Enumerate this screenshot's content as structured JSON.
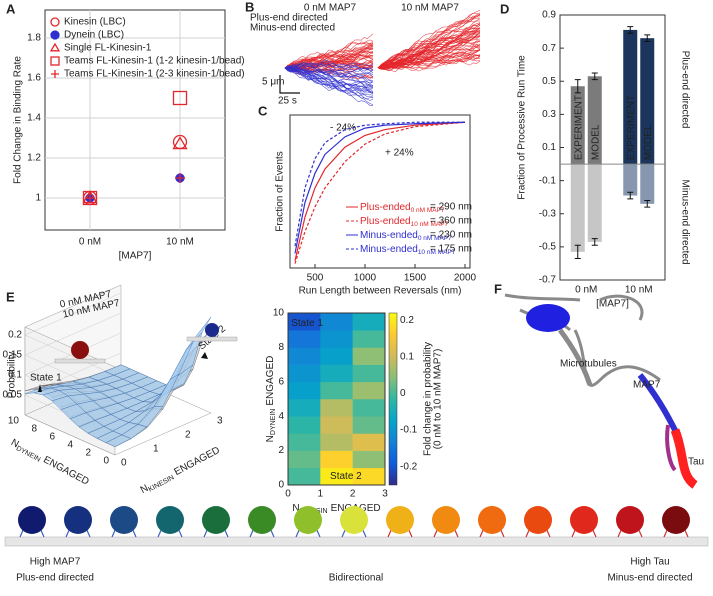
{
  "panel_labels": [
    "A",
    "B",
    "C",
    "D",
    "E",
    "F"
  ],
  "chart_data": [
    {
      "type": "scatter",
      "x_label": "[MAP7]",
      "y_label": "Fold Change in Binding Rate",
      "categories": [
        "0 nM",
        "10 nM"
      ],
      "ylim": [
        0.84,
        1.94
      ],
      "yticks": [
        1,
        1.2,
        1.4,
        1.6,
        1.8
      ],
      "grid": true,
      "series": [
        {
          "name": "Kinesin (LBC)",
          "color": "#e3262b",
          "marker": "circle",
          "filled": false,
          "values": [
            1.0,
            1.28
          ]
        },
        {
          "name": "Dynein (LBC)",
          "color": "#2f2fd0",
          "marker": "circle",
          "filled": true,
          "values": [
            1.0,
            1.1
          ]
        },
        {
          "name": "Single FL-Kinesin-1",
          "color": "#e3262b",
          "marker": "triangle",
          "filled": false,
          "values": [
            1.0,
            1.27
          ]
        },
        {
          "name": "Teams FL-Kinesin-1 (1-2 kinesin-1/bead)",
          "color": "#e3262b",
          "marker": "square",
          "filled": false,
          "values": [
            1.0,
            1.5
          ]
        },
        {
          "name": "Teams FL-Kinesin-1 (2-3 kinesin-1/bead)",
          "color": "#e3262b",
          "marker": "plus",
          "filled": false,
          "values": [
            1.0,
            1.1
          ]
        }
      ]
    },
    {
      "type": "line",
      "x_label": "Run Length between Reversals (nm)",
      "y_label": "Fraction of Events",
      "x": [
        300,
        400,
        500,
        600,
        800,
        1000,
        1200,
        1500,
        2000
      ],
      "xlim": [
        250,
        2050
      ],
      "xticks": [
        500,
        1000,
        1500,
        2000
      ],
      "ylim": [
        0,
        1.05
      ],
      "series": [
        {
          "name": "Plus-ended",
          "condition": "0 nM MAP7",
          "mean_label": "= 290 nm",
          "color": "#e3262b",
          "dashed": false,
          "values": [
            0.05,
            0.35,
            0.55,
            0.68,
            0.83,
            0.91,
            0.95,
            0.98,
            1.0
          ]
        },
        {
          "name": "Plus-ended",
          "condition": "10 nM MAP7",
          "mean_label": "= 360 nm",
          "color": "#e3262b",
          "dashed": true,
          "values": [
            0.03,
            0.25,
            0.42,
            0.55,
            0.73,
            0.85,
            0.92,
            0.97,
            1.0
          ]
        },
        {
          "name": "Minus-ended",
          "condition": "0 nM MAP7",
          "mean_label": "= 230 nm",
          "color": "#2f2fd0",
          "dashed": false,
          "values": [
            0.1,
            0.45,
            0.65,
            0.78,
            0.9,
            0.96,
            0.98,
            0.99,
            1.0
          ]
        },
        {
          "name": "Minus-ended",
          "condition": "10 nM MAP7",
          "mean_label": "= 175 nm",
          "color": "#2f2fd0",
          "dashed": true,
          "values": [
            0.15,
            0.55,
            0.75,
            0.86,
            0.95,
            0.98,
            0.99,
            1.0,
            1.0
          ]
        }
      ],
      "annotations": [
        {
          "text": "- 24%",
          "color": "#2f2fd0"
        },
        {
          "text": "+ 24%",
          "color": "#e3262b"
        }
      ]
    },
    {
      "type": "bar",
      "x_label": "[MAP7]",
      "y_label": "Fraction of Processive Run Time",
      "categories": [
        "0 nM",
        "10 nM"
      ],
      "ylim": [
        -0.7,
        0.9
      ],
      "yticks": [
        -0.7,
        -0.5,
        -0.3,
        -0.1,
        0.1,
        0.3,
        0.5,
        0.7,
        0.9
      ],
      "colors_plus": [
        "#7b7b7b",
        "#1b355c"
      ],
      "colors_minus": [
        "#c6c6c6",
        "#8797b0"
      ],
      "side_labels": [
        "Plus-end directed",
        "Minus-end directed"
      ],
      "series": [
        {
          "name": "EXPERIMENT",
          "plus": [
            0.47,
            0.81
          ],
          "plus_error": [
            0.04,
            0.02
          ],
          "minus": [
            -0.53,
            -0.19
          ],
          "minus_error": [
            0.04,
            0.02
          ]
        },
        {
          "name": "MODEL",
          "plus": [
            0.53,
            0.76
          ],
          "plus_error": [
            0.02,
            0.02
          ],
          "minus": [
            -0.47,
            -0.24
          ],
          "minus_error": [
            0.02,
            0.02
          ]
        }
      ]
    },
    {
      "type": "heatmap",
      "x_label": {
        "main": "N",
        "sub": "KINESIN",
        "rest": "ENGAGED"
      },
      "y_label": {
        "main": "N",
        "sub": "DYNEIN",
        "rest": "ENGAGED"
      },
      "colorbar_label": [
        "Fold change in probability",
        "(0 nM to 10 nM MAP7)"
      ],
      "xlim": [
        0,
        3
      ],
      "ylim": [
        0,
        10
      ],
      "xticks": [
        0,
        1,
        2,
        3
      ],
      "yticks": [
        0,
        2,
        4,
        6,
        8,
        10
      ],
      "z": [
        [
          0.0,
          0.2,
          0.18
        ],
        [
          0.02,
          0.17,
          0.05
        ],
        [
          0.0,
          0.08,
          0.12
        ],
        [
          -0.02,
          0.1,
          0.02
        ],
        [
          -0.05,
          0.08,
          0.0
        ],
        [
          -0.08,
          0.0,
          0.06
        ],
        [
          -0.1,
          -0.05,
          0.0
        ],
        [
          -0.12,
          -0.08,
          0.05
        ],
        [
          -0.15,
          -0.1,
          0.0
        ],
        [
          -0.2,
          -0.12,
          -0.05
        ]
      ],
      "zlim": [
        -0.25,
        0.22
      ],
      "zticks": [
        -0.2,
        -0.1,
        0,
        0.1,
        0.2
      ],
      "colormap": [
        "#352a87",
        "#0f5cdd",
        "#1481d6",
        "#06a4ca",
        "#2eb7a4",
        "#87bf77",
        "#d1bb59",
        "#fec832",
        "#f9fb0e"
      ],
      "annotations": [
        "State 1",
        "State 2"
      ]
    },
    {
      "type": "surface3d",
      "z_label": "Probability",
      "x_label": {
        "main": "N",
        "sub": "KINESIN",
        "rest": "ENGAGED"
      },
      "y_label": {
        "main": "N",
        "sub": "DYNEIN",
        "rest": "ENGAGED"
      },
      "xlim": [
        0,
        3
      ],
      "ylim": [
        0,
        10
      ],
      "zlim": [
        0,
        0.22
      ],
      "xticks": [
        0,
        1,
        2,
        3
      ],
      "yticks": [
        0,
        2,
        4,
        6,
        8,
        10
      ],
      "zticks": [
        0.05,
        0.1,
        0.15,
        0.2
      ],
      "series": [
        {
          "name": "0 nM MAP7",
          "color": "#8c8c8c"
        },
        {
          "name": "10 nM MAP7",
          "color": "#1f3f8f"
        }
      ],
      "annotations": [
        "State 1",
        "State 2"
      ]
    }
  ],
  "panel_b": {
    "conditions": [
      "0 nM MAP7",
      "10 nM MAP7"
    ],
    "legend": [
      "Plus-end directed",
      "Minus-end directed"
    ],
    "scale_y": "5 μm",
    "scale_x": "25 s"
  },
  "panel_f": {
    "labels": [
      "Microtubules",
      "MAP7",
      "Tau"
    ]
  },
  "schematic": {
    "left": [
      "High MAP7",
      "Plus-end directed"
    ],
    "middle": "Bidirectional",
    "right": [
      "High Tau",
      "Minus-end directed"
    ]
  }
}
